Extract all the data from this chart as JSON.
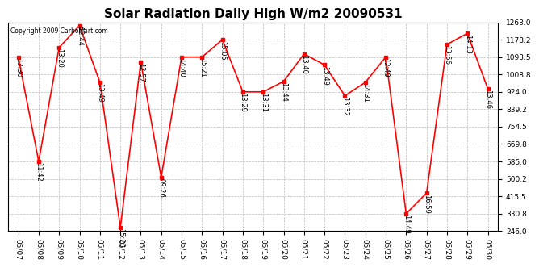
{
  "title": "Solar Radiation Daily High W/m2 20090531",
  "copyright": "Copyright 2009 CarboMart.com",
  "dates": [
    "05/07",
    "05/08",
    "05/09",
    "05/10",
    "05/11",
    "05/12",
    "05/13",
    "05/14",
    "05/15",
    "05/16",
    "05/17",
    "05/18",
    "05/19",
    "05/20",
    "05/21",
    "05/22",
    "05/23",
    "05/24",
    "05/25",
    "05/26",
    "05/27",
    "05/28",
    "05/29",
    "05/30"
  ],
  "values": [
    1093.5,
    585.0,
    1140.0,
    1247.0,
    970.0,
    263.0,
    1070.0,
    508.0,
    1093.5,
    1093.5,
    1178.2,
    924.0,
    924.0,
    975.0,
    1109.0,
    1055.0,
    905.0,
    970.0,
    1093.5,
    330.8,
    431.0,
    1155.0,
    1209.0,
    939.0
  ],
  "labels": [
    "13:30",
    "11:42",
    "13:20",
    "12:44",
    "13:49",
    "15:23",
    "12:57",
    "09:26",
    "14:40",
    "15:21",
    "15:05",
    "13:29",
    "13:31",
    "13:44",
    "13:40",
    "13:49",
    "13:32",
    "14:31",
    "12:49",
    "14:49",
    "16:59",
    "13:56",
    "14:13",
    "13:46"
  ],
  "ylim": [
    246.0,
    1263.0
  ],
  "yticks": [
    246.0,
    330.8,
    415.5,
    500.2,
    585.0,
    669.8,
    754.5,
    839.2,
    924.0,
    1008.8,
    1093.5,
    1178.2,
    1263.0
  ],
  "line_color": "#ff0000",
  "marker_color": "#ff0000",
  "bg_color": "#ffffff",
  "grid_color": "#bbbbbb",
  "title_fontsize": 11,
  "label_fontsize": 6,
  "tick_fontsize": 6.5,
  "copyright_fontsize": 5.5
}
